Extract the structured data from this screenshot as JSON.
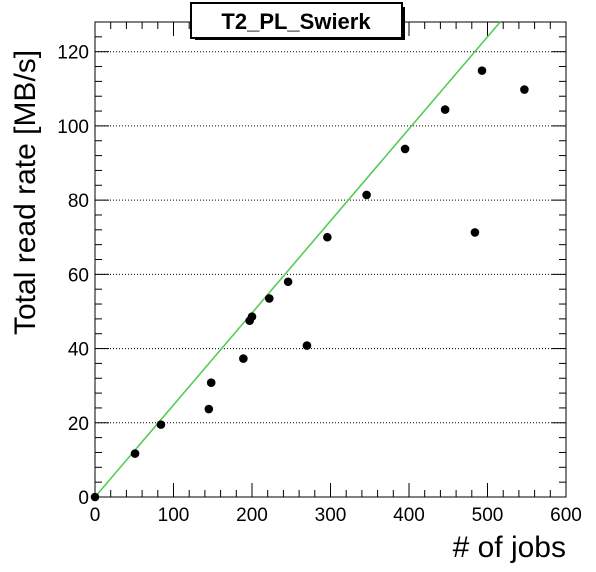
{
  "chart_data": {
    "type": "scatter",
    "title": "T2_PL_Swierk",
    "xlabel": "# of jobs",
    "ylabel": "Total read rate [MB/s]",
    "xlim": [
      0,
      600
    ],
    "ylim": [
      0,
      128
    ],
    "xticks": [
      0,
      100,
      200,
      300,
      400,
      500,
      600
    ],
    "yticks": [
      0,
      20,
      40,
      60,
      80,
      100,
      120
    ],
    "grid": "horizontal-dotted",
    "series": [
      {
        "marker": "circle",
        "color": "#000000",
        "points": [
          {
            "x": 0,
            "y": 0
          },
          {
            "x": 51,
            "y": 11.7
          },
          {
            "x": 84,
            "y": 19.5
          },
          {
            "x": 145,
            "y": 23.7
          },
          {
            "x": 148,
            "y": 30.8
          },
          {
            "x": 189,
            "y": 37.3
          },
          {
            "x": 197,
            "y": 47.5
          },
          {
            "x": 200,
            "y": 48.6
          },
          {
            "x": 222,
            "y": 53.5
          },
          {
            "x": 246,
            "y": 58.0
          },
          {
            "x": 270,
            "y": 40.8
          },
          {
            "x": 296,
            "y": 70.0
          },
          {
            "x": 346,
            "y": 81.4
          },
          {
            "x": 395,
            "y": 93.8
          },
          {
            "x": 446,
            "y": 104.4
          },
          {
            "x": 484,
            "y": 71.3
          },
          {
            "x": 493,
            "y": 114.9
          },
          {
            "x": 547,
            "y": 109.8
          }
        ]
      }
    ],
    "fit_line": {
      "color": "#55cc55",
      "slope": 0.248,
      "intercept": 0
    }
  }
}
